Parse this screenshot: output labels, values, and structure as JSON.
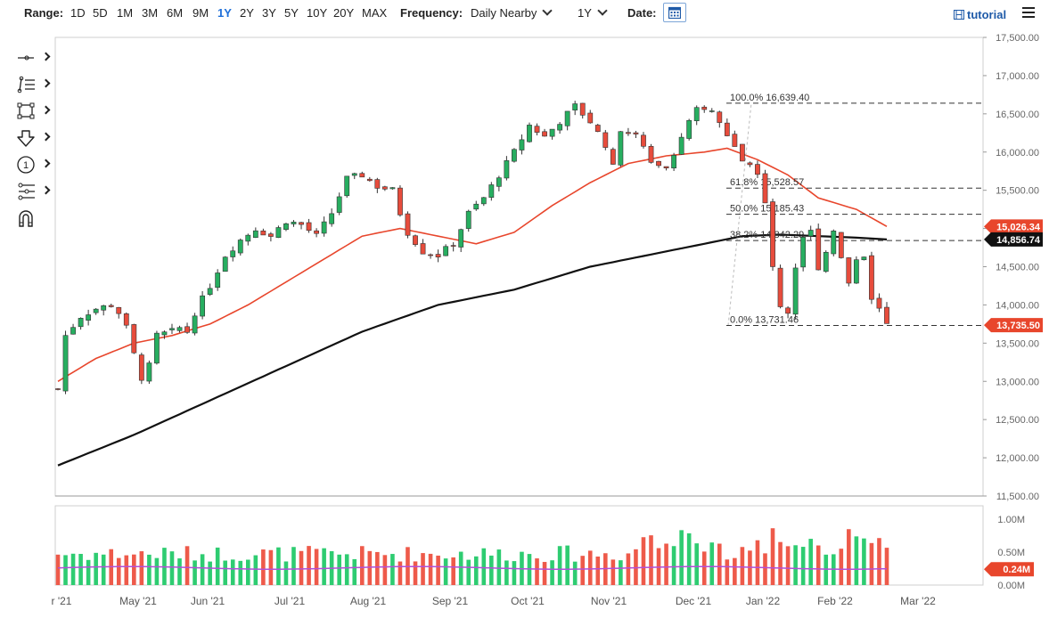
{
  "toolbar": {
    "range_label": "Range:",
    "ranges": [
      "1D",
      "5D",
      "1M",
      "3M",
      "6M",
      "9M",
      "1Y",
      "2Y",
      "3Y",
      "5Y",
      "10Y",
      "20Y",
      "MAX"
    ],
    "active_range": "1Y",
    "frequency_label": "Frequency:",
    "frequency_value": "Daily Nearby",
    "period_value": "1Y",
    "date_label": "Date:",
    "tutorial_label": "tutorial"
  },
  "tools": [
    "crosshair-icon",
    "trend-line-icon",
    "rectangle-icon",
    "arrow-down-icon",
    "annotation-number-icon",
    "fibonacci-icon",
    "magnet-icon"
  ],
  "chart_data": {
    "type": "candlestick",
    "y_axis": {
      "ticks": [
        "17,500.00",
        "17,000.00",
        "16,500.00",
        "16,000.00",
        "15,500.00",
        "15,000.00",
        "14,500.00",
        "14,000.00",
        "13,500.00",
        "13,000.00",
        "12,500.00",
        "12,000.00",
        "11,500.00"
      ],
      "range": [
        11500,
        17500
      ]
    },
    "x_axis": {
      "ticks": [
        "r '21",
        "May '21",
        "Jun '21",
        "Jul '21",
        "Aug '21",
        "Sep '21",
        "Oct '21",
        "Nov '21",
        "Dec '21",
        "Jan '22",
        "Feb '22",
        "Mar '22"
      ]
    },
    "price_path": [
      [
        0,
        12900
      ],
      [
        1,
        13600
      ],
      [
        3,
        13850
      ],
      [
        5,
        13950
      ],
      [
        7,
        14000
      ],
      [
        8,
        13900
      ],
      [
        9,
        13700
      ],
      [
        10,
        13350
      ],
      [
        11,
        13050
      ],
      [
        12,
        13200
      ],
      [
        13,
        13600
      ],
      [
        15,
        13650
      ],
      [
        16,
        13700
      ],
      [
        17,
        13650
      ],
      [
        18,
        13900
      ],
      [
        20,
        14250
      ],
      [
        22,
        14650
      ],
      [
        24,
        14850
      ],
      [
        26,
        15000
      ],
      [
        28,
        14900
      ],
      [
        30,
        15100
      ],
      [
        32,
        15050
      ],
      [
        34,
        14900
      ],
      [
        36,
        15200
      ],
      [
        38,
        15650
      ],
      [
        40,
        15700
      ],
      [
        42,
        15550
      ],
      [
        44,
        15500
      ],
      [
        45,
        15200
      ],
      [
        46,
        14950
      ],
      [
        48,
        14700
      ],
      [
        50,
        14650
      ],
      [
        52,
        14800
      ],
      [
        54,
        15200
      ],
      [
        56,
        15400
      ],
      [
        58,
        15700
      ],
      [
        60,
        16000
      ],
      [
        62,
        16350
      ],
      [
        64,
        16200
      ],
      [
        66,
        16400
      ],
      [
        68,
        16600
      ],
      [
        70,
        16400
      ],
      [
        72,
        16100
      ],
      [
        73,
        15800
      ],
      [
        74,
        16300
      ],
      [
        76,
        16200
      ],
      [
        78,
        15900
      ],
      [
        80,
        15800
      ],
      [
        82,
        16200
      ],
      [
        84,
        16550
      ],
      [
        86,
        16550
      ],
      [
        88,
        16200
      ],
      [
        90,
        15900
      ],
      [
        92,
        15750
      ],
      [
        93,
        15300
      ],
      [
        94,
        14500
      ],
      [
        95,
        14000
      ],
      [
        96,
        13900
      ],
      [
        97,
        14500
      ],
      [
        98,
        14900
      ],
      [
        99,
        14950
      ],
      [
        100,
        14500
      ],
      [
        101,
        14700
      ],
      [
        102,
        15000
      ],
      [
        103,
        14600
      ],
      [
        104,
        14300
      ],
      [
        105,
        14600
      ],
      [
        106,
        14650
      ],
      [
        107,
        14100
      ],
      [
        108,
        13950
      ],
      [
        109,
        13735.5
      ]
    ],
    "ma_fast_path": [
      [
        0,
        13000
      ],
      [
        5,
        13300
      ],
      [
        10,
        13500
      ],
      [
        15,
        13600
      ],
      [
        20,
        13750
      ],
      [
        25,
        14000
      ],
      [
        30,
        14300
      ],
      [
        35,
        14600
      ],
      [
        40,
        14900
      ],
      [
        45,
        15000
      ],
      [
        50,
        14900
      ],
      [
        55,
        14800
      ],
      [
        60,
        14950
      ],
      [
        65,
        15300
      ],
      [
        70,
        15600
      ],
      [
        75,
        15850
      ],
      [
        80,
        15950
      ],
      [
        85,
        16000
      ],
      [
        88,
        16050
      ],
      [
        92,
        15900
      ],
      [
        96,
        15700
      ],
      [
        100,
        15400
      ],
      [
        105,
        15250
      ],
      [
        109,
        15026.34
      ]
    ],
    "ma_slow_path": [
      [
        0,
        11900
      ],
      [
        10,
        12300
      ],
      [
        20,
        12750
      ],
      [
        30,
        13200
      ],
      [
        40,
        13650
      ],
      [
        50,
        14000
      ],
      [
        60,
        14200
      ],
      [
        70,
        14500
      ],
      [
        80,
        14700
      ],
      [
        85,
        14800
      ],
      [
        90,
        14900
      ],
      [
        95,
        14920
      ],
      [
        100,
        14900
      ],
      [
        105,
        14880
      ],
      [
        109,
        14856.74
      ]
    ],
    "fib_levels": [
      {
        "label": "100.0% 16,639.40",
        "value": 16639.4
      },
      {
        "label": "61.8% 15,528.57",
        "value": 15528.57
      },
      {
        "label": "50.0% 15,185.43",
        "value": 15185.43
      },
      {
        "label": "38.2% 14,842.29",
        "value": 14842.29
      },
      {
        "label": "0.0% 13,731.46",
        "value": 13731.46
      }
    ],
    "price_labels": [
      {
        "text": "15,026.34",
        "value": 15026.34,
        "color": "#e8462c"
      },
      {
        "text": "14,856.74",
        "value": 14856.74,
        "color": "#111111"
      },
      {
        "text": "13,735.50",
        "value": 13735.5,
        "color": "#e8462c"
      }
    ],
    "volume_axis": {
      "ticks": [
        "1.00M",
        "0.50M",
        "0.00M"
      ],
      "range": [
        0,
        1.2
      ]
    },
    "volume_label": {
      "text": "0.24M",
      "value": 0.24,
      "color": "#e8462c"
    },
    "colors": {
      "up": "#27ae60",
      "down": "#e74c3c",
      "ma_fast": "#e8462c",
      "ma_slow": "#111111",
      "volume_up": "#2ecc71",
      "volume_down": "#ee5a4a",
      "volume_ma": "#b24fd8"
    }
  }
}
